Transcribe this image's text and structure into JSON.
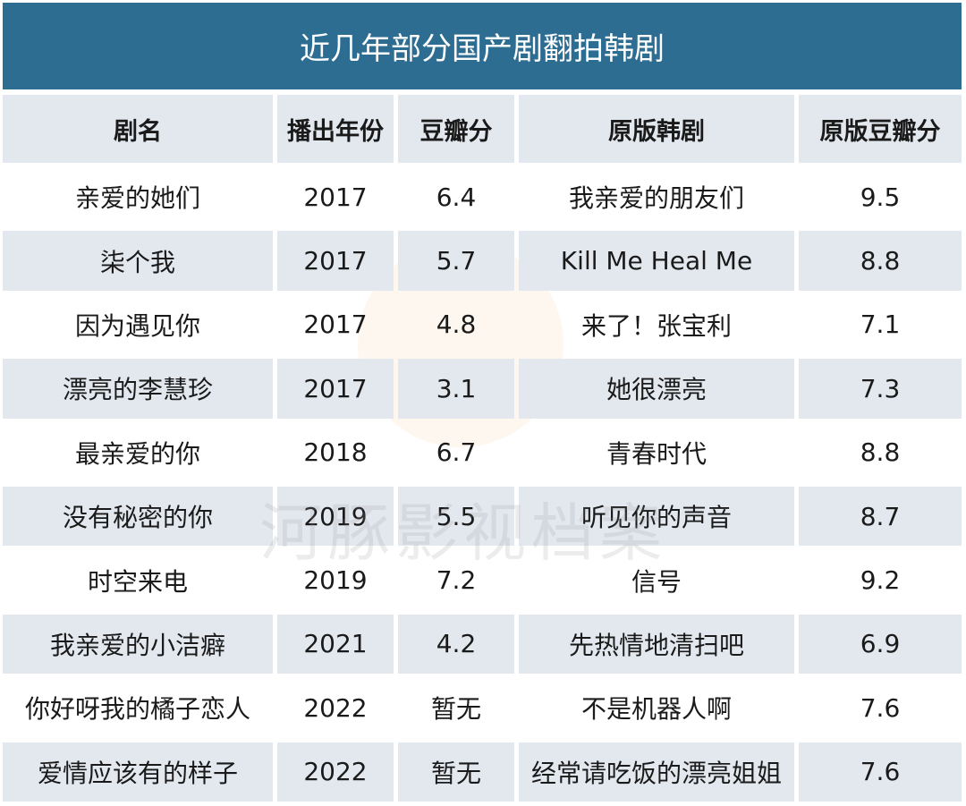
{
  "title": "近几年部分国产剧翻拍韩剧",
  "watermark": "河豚影视档案",
  "headers": [
    "剧名",
    "播出年份",
    "豆瓣分",
    "原版韩剧",
    "原版豆瓣分"
  ],
  "rows": [
    [
      "亲爱的她们",
      "2017",
      "6.4",
      "我亲爱的朋友们",
      "9.5"
    ],
    [
      "柒个我",
      "2017",
      "5.7",
      "Kill Me Heal Me",
      "8.8"
    ],
    [
      "因为遇见你",
      "2017",
      "4.8",
      "来了！张宝利",
      "7.1"
    ],
    [
      "漂亮的李慧珍",
      "2017",
      "3.1",
      "她很漂亮",
      "7.3"
    ],
    [
      "最亲爱的你",
      "2018",
      "6.7",
      "青春时代",
      "8.8"
    ],
    [
      "没有秘密的你",
      "2019",
      "5.5",
      "听见你的声音",
      "8.7"
    ],
    [
      "时空来电",
      "2019",
      "7.2",
      "信号",
      "9.2"
    ],
    [
      "我亲爱的小洁癖",
      "2021",
      "4.2",
      "先热情地清扫吧",
      "6.9"
    ],
    [
      "你好呀我的橘子恋人",
      "2022",
      "暂无",
      "不是机器人啊",
      "7.6"
    ],
    [
      "爱情应该有的样子",
      "2022",
      "暂无",
      "经常请吃饭的漂亮姐姐",
      "7.6"
    ]
  ],
  "chart_data": {
    "type": "table",
    "title": "近几年部分国产剧翻拍韩剧",
    "columns": [
      "剧名",
      "播出年份",
      "豆瓣分",
      "原版韩剧",
      "原版豆瓣分"
    ],
    "rows": [
      [
        "亲爱的她们",
        2017,
        6.4,
        "我亲爱的朋友们",
        9.5
      ],
      [
        "柒个我",
        2017,
        5.7,
        "Kill Me Heal Me",
        8.8
      ],
      [
        "因为遇见你",
        2017,
        4.8,
        "来了！张宝利",
        7.1
      ],
      [
        "漂亮的李慧珍",
        2017,
        3.1,
        "她很漂亮",
        7.3
      ],
      [
        "最亲爱的你",
        2018,
        6.7,
        "青春时代",
        8.8
      ],
      [
        "没有秘密的你",
        2019,
        5.5,
        "听见你的声音",
        8.7
      ],
      [
        "时空来电",
        2019,
        7.2,
        "信号",
        9.2
      ],
      [
        "我亲爱的小洁癖",
        2021,
        4.2,
        "先热情地清扫吧",
        6.9
      ],
      [
        "你好呀我的橘子恋人",
        2022,
        "暂无",
        "不是机器人啊",
        7.6
      ],
      [
        "爱情应该有的样子",
        2022,
        "暂无",
        "经常请吃饭的漂亮姐姐",
        7.6
      ]
    ]
  },
  "colors": {
    "title_bg": "#2e6d92",
    "header_bg": "#e3e8ef",
    "alt_row_bg": "#e3e8ef"
  }
}
